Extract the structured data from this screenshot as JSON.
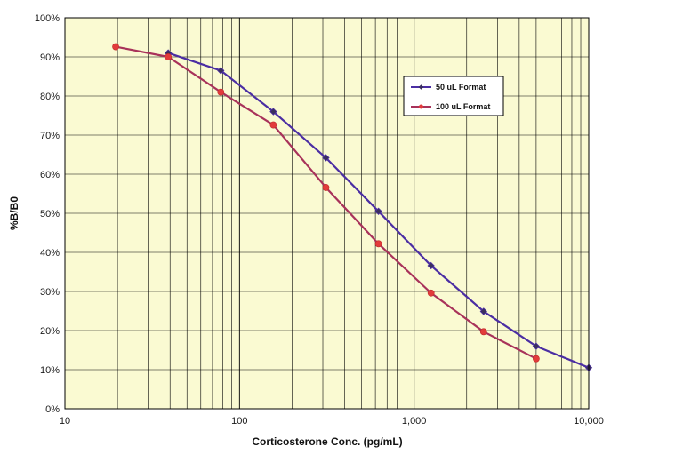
{
  "chart_data": {
    "type": "line",
    "xscale": "log",
    "xlim": [
      10,
      10000
    ],
    "ylim": [
      0,
      100
    ],
    "xlabel": "Corticosterone Conc. (pg/mL)",
    "ylabel": "%B/B0",
    "x_ticks": [
      {
        "value": 10,
        "label": "10"
      },
      {
        "value": 100,
        "label": "100"
      },
      {
        "value": 1000,
        "label": "1,000"
      },
      {
        "value": 10000,
        "label": "10,000"
      }
    ],
    "y_ticks": [
      {
        "value": 0,
        "label": "0%"
      },
      {
        "value": 10,
        "label": "10%"
      },
      {
        "value": 20,
        "label": "20%"
      },
      {
        "value": 30,
        "label": "30%"
      },
      {
        "value": 40,
        "label": "40%"
      },
      {
        "value": 50,
        "label": "50%"
      },
      {
        "value": 60,
        "label": "60%"
      },
      {
        "value": 70,
        "label": "70%"
      },
      {
        "value": 80,
        "label": "80%"
      },
      {
        "value": 90,
        "label": "90%"
      },
      {
        "value": 100,
        "label": "100%"
      }
    ],
    "grid": true,
    "legend_position": "top-right",
    "background_color": "#fafad2",
    "series": [
      {
        "name": "50 uL Format",
        "color": "#4b2ea3",
        "marker": "diamond",
        "x": [
          39.06,
          78.13,
          156.25,
          312.5,
          625,
          1250,
          2500,
          5000,
          10000
        ],
        "y": [
          91,
          86.5,
          76,
          64.2,
          50.5,
          36.6,
          24.9,
          16,
          10.5
        ]
      },
      {
        "name": "100 uL Format",
        "color": "#a8325a",
        "marker": "circle",
        "x": [
          19.53,
          39.06,
          78.13,
          156.25,
          312.5,
          625,
          1250,
          2500,
          5000
        ],
        "y": [
          92.6,
          90,
          81,
          72.6,
          56.6,
          42.2,
          29.6,
          19.7,
          12.8
        ]
      }
    ]
  }
}
